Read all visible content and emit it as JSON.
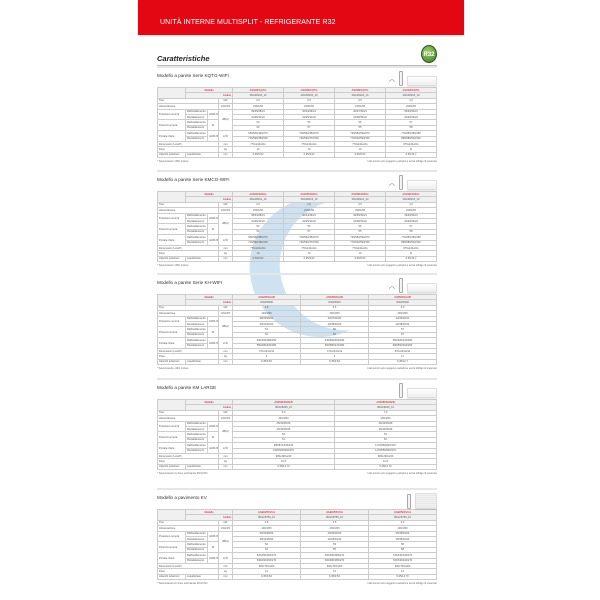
{
  "header": {
    "title": "UNITÀ INTERNE MULTISPLIT - REFRIGERANTE R32",
    "badge": "R32"
  },
  "page_heading": "Caratteristiche",
  "labels": {
    "model": "Modello",
    "code": "Codice",
    "tipo": "Tipo",
    "alim": "Alimentazione",
    "pres": "Pressione sonora",
    "pot": "Potenza sonora",
    "port": "Portata d'aria",
    "dim": "Dimensioni (LxAxP)",
    "peso": "Peso",
    "att": "Attacchi tubazioni",
    "raff": "Raffreddamento",
    "risc": "Riscaldamento",
    "liq": "Liquido/Gas",
    "u_kw": "kW",
    "u_v": "V/Hz/Ph",
    "u_hml": "H/M/L/SL",
    "u_hml2": "H/M/L/SL",
    "u_dba": "dB(A)",
    "u_m3": "m³/h",
    "u_mm": "mm",
    "u_kg": "kg",
    "u_mm2": "mm",
    "u_w": "W",
    "wifi": "WiFi",
    "disclaimer": "I dati tecnici sono soggetti a variazione senza obbligo di preavviso"
  },
  "sections": [
    {
      "title": "Modello a parete Serie KQTG-WIFI",
      "note": "* Telecomando e WiFi Incluso",
      "models": [
        "AS020FKQTG",
        "AS025FKQTG",
        "AS035FKQTG",
        "AS042FKQTG"
      ],
      "codes": [
        "3NGF8230_10",
        "3NGF8231_10",
        "3NGF8232_10",
        "3NGF8233_10"
      ],
      "tipo": [
        "2,0",
        "2,5",
        "3,5",
        "4,2"
      ],
      "alim": [
        "230/1/50",
        "230/1/50",
        "230/1/50",
        "230/1/50"
      ],
      "pres_raff": [
        "39/35/28/21",
        "40/34/29/21",
        "40/37/30/21",
        "45/36/30/21"
      ],
      "pres_risc": [
        "41/35/31/22",
        "42/35/31/22",
        "42/38/35/22",
        "44/39/33/24"
      ],
      "pot_raff": [
        "53",
        "55",
        "56",
        "57"
      ],
      "pot_risc": [
        "54",
        "57",
        "55",
        "58"
      ],
      "port_raff": [
        "550/540/430/270",
        "700/560/450/270",
        "760/584/530/270",
        "770/650/450/280"
      ],
      "port_risc": [
        "720/590/480/330",
        "760/590/470/330",
        "770/640/520/330",
        "880/680/520/340"
      ],
      "dim": [
        "770x244x211",
        "770x244x211",
        "770x244x211",
        "870x244x211"
      ],
      "peso": [
        "10",
        "10",
        "10",
        "11"
      ],
      "att": [
        "6,35/9,52",
        "6,35/9,52",
        "6,35/9,52",
        "6,35/12,7"
      ]
    },
    {
      "title": "Modello a parete Serie KMCG-WIFI",
      "note": "* Telecomando e WiFi Incluso",
      "models": [
        "AS020FKMCG",
        "AS025FKMCG",
        "AS035FKMCG",
        "AS042FKMCG"
      ],
      "codes": [
        "3NGF8212_10",
        "3NGF8213_10",
        "3NGF8214_10",
        "3NGF8215_10"
      ],
      "tipo": [
        "2,0",
        "2,5",
        "3,5",
        "4,2"
      ],
      "alim": [
        "230/1/50",
        "230/1/50",
        "230/1/50",
        "230/1/50"
      ],
      "pres_raff": [
        "38/33/28/21",
        "40/34/29/21",
        "40/35/30/21",
        "43/36/30/21"
      ],
      "pres_risc": [
        "41/35/31/22",
        "42/35/31/22",
        "42/38/33/22",
        "44/39/33/24"
      ],
      "pot_raff": [
        "53",
        "55",
        "56",
        "57"
      ],
      "pot_risc": [
        "54",
        "57",
        "55",
        "58"
      ],
      "port_raff": [
        "550/460/380/270",
        "700/560/450/270",
        "760/584/530/270",
        "770/650/450/280"
      ],
      "port_risc": [
        "720/590/480/330",
        "760/590/470/330",
        "770/640/520/330",
        "880/680/520/340"
      ],
      "dim": [
        "770x244x211",
        "770x244x211",
        "770x244x211",
        "870x244x211"
      ],
      "peso": [
        "10",
        "10",
        "10",
        "11"
      ],
      "att": [
        "6,35/9,52",
        "6,35/9,52",
        "6,35/9,52",
        "6,35/12,7"
      ]
    },
    {
      "title": "Modello a parete Serie KH-WIFI",
      "note": "* Telecomando e WiFi Incluso",
      "models": [
        "AS025FKHAB",
        "AS035FKHAB",
        "AS050FKHAB"
      ],
      "codes": [
        "3NGF8300",
        "3NGF8301",
        "3NGF8302"
      ],
      "tipo": [
        "2,5",
        "3,5",
        "5,0"
      ],
      "alim": [
        "230/1/50",
        "230/1/50",
        "230/1/50"
      ],
      "pres_raff": [
        "38/33/28/21",
        "40/37/30/21",
        "42/36/32/21"
      ],
      "pres_risc": [
        "40/34/30/22",
        "42/38/33/22",
        "42/38/33/22"
      ],
      "pot_raff": [
        "51",
        "56",
        "57"
      ],
      "pot_risc": [
        "52",
        "56",
        "57"
      ],
      "port_raff": [
        "530/460/380/250",
        "640/560/450/250",
        "650/520/440/280"
      ],
      "port_risc": [
        "550/480/400/280",
        "660/580/470/280",
        "680/560/460/290"
      ],
      "dim": [
        "770x244x211",
        "770x244x211",
        "870x244x211"
      ],
      "peso": [
        "9",
        "9",
        "11"
      ],
      "att": [
        "6,35/9,52",
        "6,35/9,52",
        "6,35/12,7"
      ]
    },
    {
      "title": "Modello a parete KM LARGE",
      "note": "* Telecomando con timer settimanale INCLUSO",
      "models": [
        "AS050FKMAFB",
        "AS068FKMAFB"
      ],
      "codes": [
        "3NGF8245_10",
        "3NGF8246_10"
      ],
      "tipo": [
        "5,0",
        "7,0"
      ],
      "alim": [
        "230/1/50",
        "230/1/50"
      ],
      "pres_raff": [
        "45/42/35/29",
        "46/40/35/29"
      ],
      "pres_risc": [
        "45/40/35/25",
        "46/40/35/29"
      ],
      "pot_raff": [
        "59",
        "63"
      ],
      "pot_risc": [
        "61",
        "62"
      ],
      "port_raff": [
        "980/870/540/310",
        "1170/950/640/370"
      ],
      "port_risc": [
        "1020/930/640/370",
        "1170/950/640/370"
      ],
      "dim": [
        "995x290x240",
        "995x290x240"
      ],
      "peso": [
        "12,5",
        "12,5"
      ],
      "att": [
        "6,35/12,70",
        "6,35/12,70"
      ]
    },
    {
      "title": "Modello a pavimento KV",
      "note": "* Telecomando con timer settimanale INCLUSO",
      "models": [
        "AGE025KVCA",
        "AGE035KVCA",
        "AGE050KVCA"
      ],
      "codes": [
        "3NGF8750_10",
        "3NGF8755_10",
        "3NGF8760_10"
      ],
      "tipo": [
        "2,5",
        "3,5",
        "5,0"
      ],
      "alim": [
        "230/1/50",
        "230/1/50",
        "230/1/50"
      ],
      "pres_raff": [
        "36/32/28/22",
        "40/36/30/22",
        "45/38/33/22"
      ],
      "pres_risc": [
        "36/32/28/22",
        "42/35/33/22",
        "45/38/33/22"
      ],
      "pot_raff": [
        "52",
        "55",
        "58"
      ],
      "pot_risc": [
        "52",
        "55",
        "58"
      ],
      "port_raff": [
        "520/450/350/270",
        "600/480/380/270",
        "700/540/440/270"
      ],
      "port_risc": [
        "530/460/360/270",
        "600/480/380/270",
        "700/540/440/270"
      ],
      "dim": [
        "600x700x200",
        "600x700x200",
        "600x700x200"
      ],
      "peso": [
        "14",
        "14",
        "14"
      ],
      "att": [
        "6,35/9,52",
        "6,35/9,52",
        "6,35/12,70"
      ]
    }
  ]
}
